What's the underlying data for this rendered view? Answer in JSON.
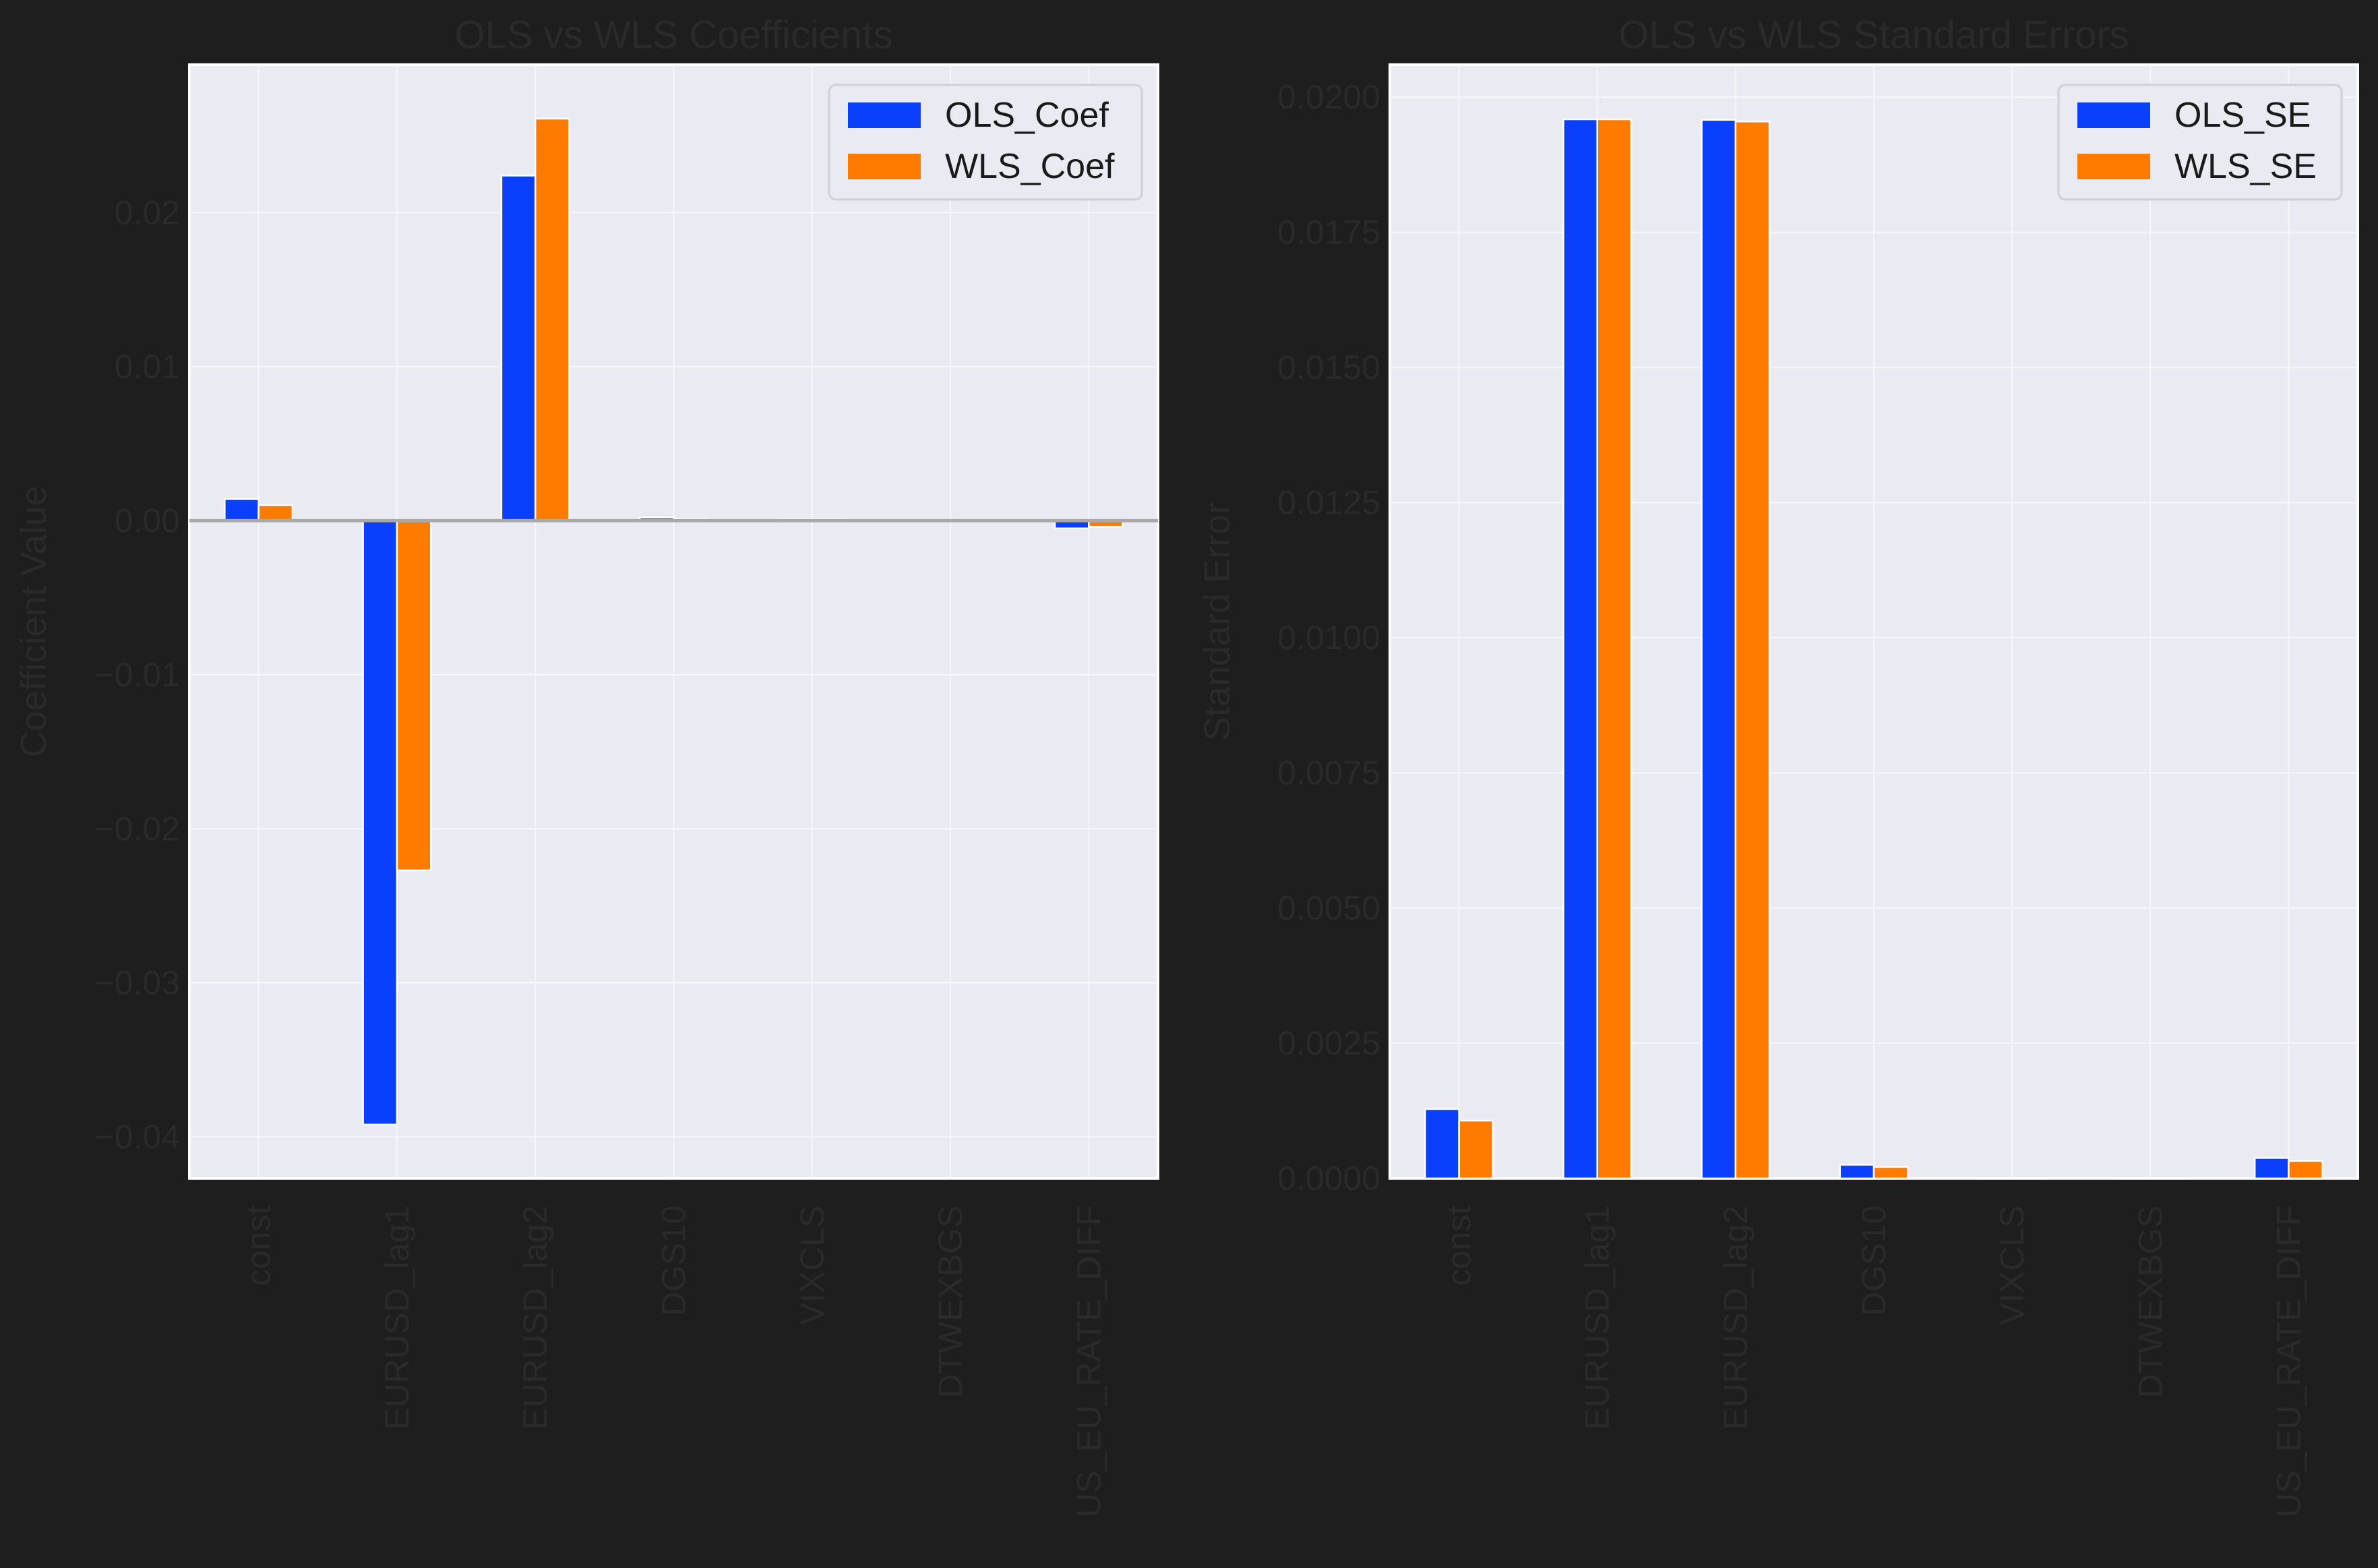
{
  "figure": {
    "background": "#1e1e1e"
  },
  "colors": {
    "series_1": "#0a3ffb",
    "series_2": "#ff7b00",
    "plot_bg": "#eaeaf2",
    "grid": "#f7f7fa",
    "muted_text": "#2a2a2a",
    "legend_text": "#1a1a1a",
    "zero_line": "#a9a9a9"
  },
  "chart_data": [
    {
      "type": "bar",
      "title": "OLS vs WLS Coefficients",
      "xlabel": "",
      "ylabel": "Coefficient Value",
      "categories": [
        "const",
        "EURUSD_lag1",
        "EURUSD_lag2",
        "DGS10",
        "VIXCLS",
        "DTWEXBGS",
        "US_EU_RATE_DIFF"
      ],
      "series": [
        {
          "name": "OLS_Coef",
          "values": [
            0.0014,
            -0.0392,
            0.0224,
            0.0002,
            0.0001,
            0.0,
            -0.0005
          ]
        },
        {
          "name": "WLS_Coef",
          "values": [
            0.001,
            -0.0227,
            0.0261,
            0.0001,
            0.0001,
            0.0,
            -0.0004
          ]
        }
      ],
      "ylim": [
        -0.0427,
        0.0296
      ],
      "yticks": [
        -0.04,
        -0.03,
        -0.02,
        -0.01,
        0.0,
        0.01,
        0.02
      ],
      "ytick_labels": [
        "−0.04",
        "−0.03",
        "−0.02",
        "−0.01",
        "0.00",
        "0.01",
        "0.02"
      ],
      "zero_line": true,
      "grid": true,
      "legend": "top-right"
    },
    {
      "type": "bar",
      "title": "OLS vs WLS Standard Errors",
      "xlabel": "",
      "ylabel": "Standard Error",
      "categories": [
        "const",
        "EURUSD_lag1",
        "EURUSD_lag2",
        "DGS10",
        "VIXCLS",
        "DTWEXBGS",
        "US_EU_RATE_DIFF"
      ],
      "series": [
        {
          "name": "OLS_SE",
          "values": [
            0.00128,
            0.01959,
            0.01958,
            0.00025,
            0.0,
            0.0,
            0.00038
          ]
        },
        {
          "name": "WLS_SE",
          "values": [
            0.00107,
            0.01959,
            0.01955,
            0.00021,
            0.0,
            0.0,
            0.00032
          ]
        }
      ],
      "ylim": [
        0.0,
        0.0206
      ],
      "yticks": [
        0.0,
        0.0025,
        0.005,
        0.0075,
        0.01,
        0.0125,
        0.015,
        0.0175,
        0.02
      ],
      "ytick_labels": [
        "0.0000",
        "0.0025",
        "0.0050",
        "0.0075",
        "0.0100",
        "0.0125",
        "0.0150",
        "0.0175",
        "0.0200"
      ],
      "zero_line": false,
      "grid": true,
      "legend": "top-right"
    }
  ]
}
